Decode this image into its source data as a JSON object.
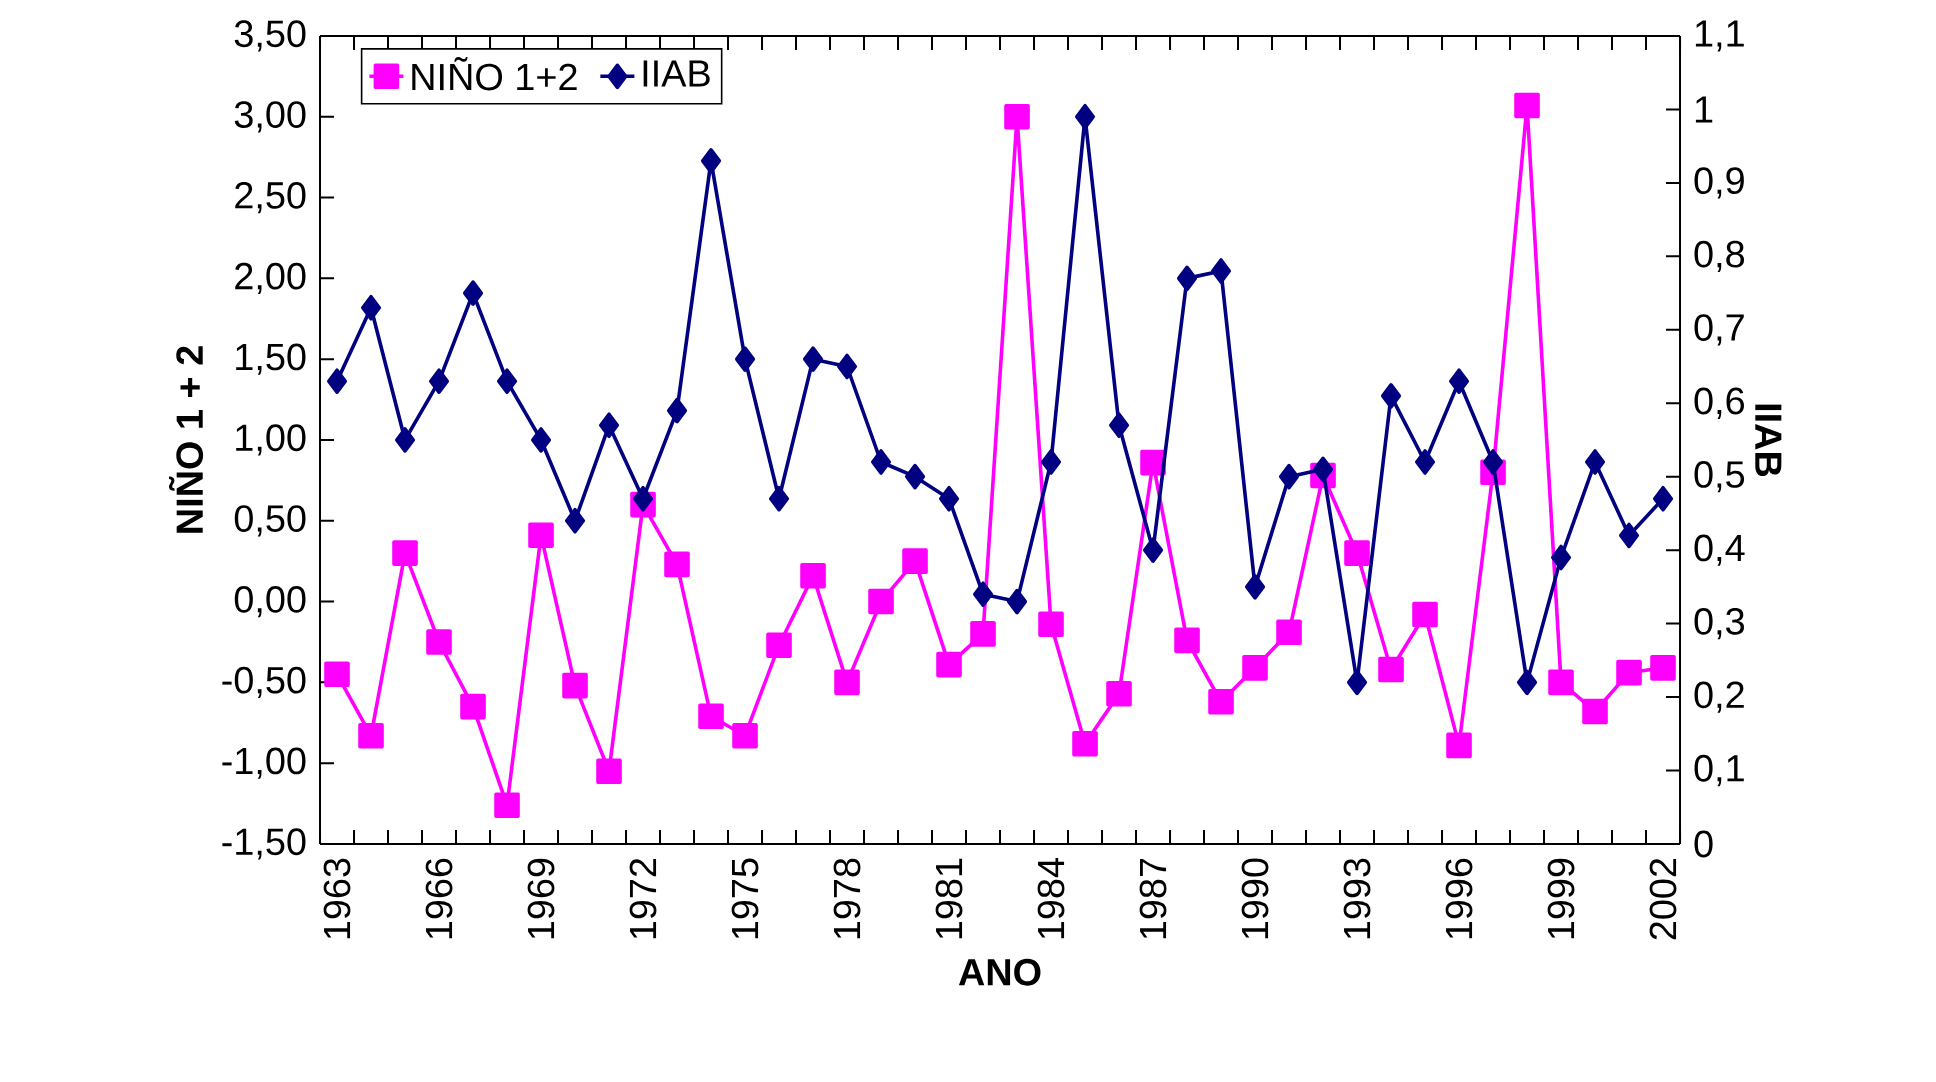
{
  "chart_data": {
    "type": "line",
    "xlabel": "ANO",
    "ylabel": "NIÑO 1 + 2",
    "y2label": "IIAB",
    "categories": [
      "1963",
      null,
      null,
      "1966",
      null,
      null,
      "1969",
      null,
      null,
      "1972",
      null,
      null,
      "1975",
      null,
      null,
      "1978",
      null,
      null,
      "1981",
      null,
      null,
      "1984",
      null,
      null,
      "1987",
      null,
      null,
      "1990",
      null,
      null,
      "1993",
      null,
      null,
      "1996",
      null,
      null,
      "1999",
      null,
      null,
      "2002"
    ],
    "series": [
      {
        "name": "NIÑO 1+2",
        "color": "#ff00ff",
        "marker": "square",
        "values": [
          -0.45,
          -0.83,
          0.3,
          -0.25,
          -0.65,
          -1.26,
          0.41,
          -0.52,
          -1.05,
          0.6,
          0.23,
          -0.71,
          -0.83,
          -0.27,
          0.16,
          -0.5,
          0.0,
          0.25,
          -0.39,
          -0.2,
          3.0,
          -0.14,
          -0.88,
          -0.57,
          0.86,
          -0.24,
          -0.62,
          -0.41,
          -0.19,
          0.78,
          0.3,
          -0.42,
          -0.08,
          -0.89,
          0.8,
          3.07,
          -0.5,
          -0.68,
          -0.44,
          -0.41
        ]
      },
      {
        "name": "IIAB",
        "color": "#000080",
        "marker": "diamond",
        "axis": "y2",
        "values": [
          0.63,
          0.73,
          0.55,
          0.63,
          0.75,
          0.63,
          0.55,
          0.44,
          0.57,
          0.47,
          0.59,
          0.93,
          0.66,
          0.47,
          0.66,
          0.65,
          0.52,
          0.5,
          0.47,
          0.34,
          0.33,
          0.52,
          0.99,
          0.57,
          0.4,
          0.77,
          0.78,
          0.35,
          0.5,
          0.51,
          0.22,
          0.61,
          0.52,
          0.63,
          0.52,
          0.22,
          0.39,
          0.52,
          0.42,
          0.47
        ]
      }
    ],
    "ylim": [
      -1.5,
      3.5
    ],
    "yticks": [
      {
        "value": -1.5,
        "label": "-1,50"
      },
      {
        "value": -1.0,
        "label": "-1,00"
      },
      {
        "value": -0.5,
        "label": "-0,50"
      },
      {
        "value": 0.0,
        "label": "0,00"
      },
      {
        "value": 0.5,
        "label": "0,50"
      },
      {
        "value": 1.0,
        "label": "1,00"
      },
      {
        "value": 1.5,
        "label": "1,50"
      },
      {
        "value": 2.0,
        "label": "2,00"
      },
      {
        "value": 2.5,
        "label": "2,50"
      },
      {
        "value": 3.0,
        "label": "3,00"
      },
      {
        "value": 3.5,
        "label": "3,50"
      }
    ],
    "y2lim": [
      0,
      1.1
    ],
    "y2ticks": [
      0,
      {
        "value": 0.1,
        "label": "0,1"
      },
      {
        "value": 0.2,
        "label": "0,2"
      },
      {
        "value": 0.3,
        "label": "0,3"
      },
      {
        "value": 0.4,
        "label": "0,4"
      },
      {
        "value": 0.5,
        "label": "0,5"
      },
      {
        "value": 0.6,
        "label": "0,6"
      },
      {
        "value": 0.7,
        "label": "0,7"
      },
      {
        "value": 0.8,
        "label": "0,8"
      },
      {
        "value": 0.9,
        "label": "0,9"
      },
      1,
      {
        "value": 1.1,
        "label": "1,1"
      }
    ],
    "legend": "top left",
    "grid": false
  }
}
